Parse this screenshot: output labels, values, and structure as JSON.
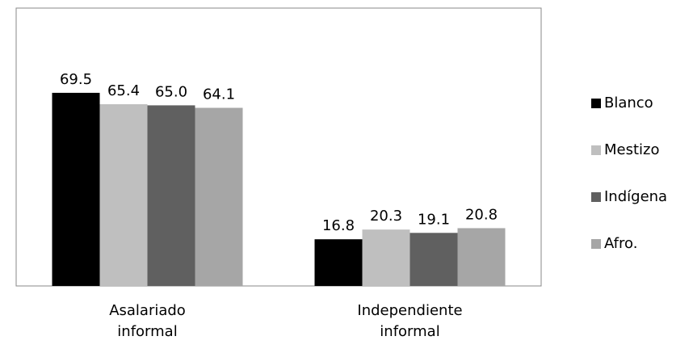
{
  "chart_data": {
    "type": "bar",
    "categories": [
      "Asalariado informal",
      "Independiente informal"
    ],
    "series": [
      {
        "name": "Blanco",
        "color": "#000000",
        "values": [
          69.5,
          16.8
        ],
        "value_labels": [
          "69.5",
          "16.8"
        ]
      },
      {
        "name": "Mestizo",
        "color": "#bfbfbf",
        "values": [
          65.4,
          20.3
        ],
        "value_labels": [
          "65.4",
          "20.3"
        ]
      },
      {
        "name": "Indígena",
        "color": "#606060",
        "values": [
          65.0,
          19.1
        ],
        "value_labels": [
          "65.0",
          "19.1"
        ]
      },
      {
        "name": "Afro.",
        "color": "#a6a6a6",
        "values": [
          64.1,
          20.8
        ],
        "value_labels": [
          "64.1",
          "20.8"
        ]
      }
    ],
    "ylim": [
      0,
      100
    ],
    "legend": "right"
  }
}
